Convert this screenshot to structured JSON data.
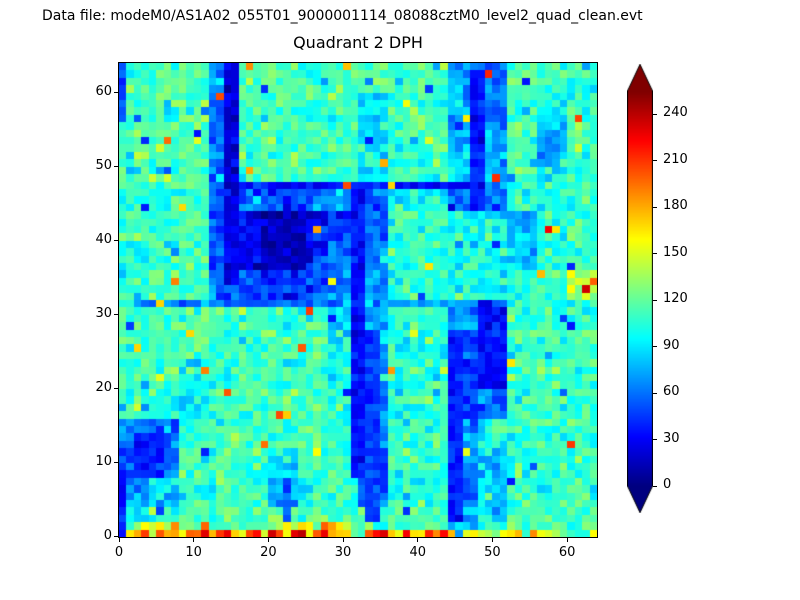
{
  "page": {
    "background": "#ffffff",
    "frame_color": "#000000"
  },
  "header": {
    "data_file_label": "Data file: modeM0/AS1A02_055T01_9000001114_08088cztM0_level2_quad_clean.evt"
  },
  "chart_data": {
    "type": "heatmap",
    "title": "Quadrant 2 DPH",
    "xlabel": "",
    "ylabel": "",
    "xlim": [
      0,
      64
    ],
    "ylim": [
      0,
      64
    ],
    "x_ticks": [
      0,
      10,
      20,
      30,
      40,
      50,
      60
    ],
    "y_ticks": [
      0,
      10,
      20,
      30,
      40,
      50,
      60
    ],
    "grid_size": 64,
    "colormap": "jet",
    "vmin": 0,
    "vmax": 255,
    "colorbar": {
      "ticks": [
        0,
        30,
        60,
        90,
        120,
        150,
        180,
        210,
        240
      ],
      "extend": "both"
    },
    "field": {
      "seed": 20240817,
      "noise_sd": 12,
      "dark_speckle_prob": 0.012,
      "hot_speckle_prob": 0.005,
      "coarse_origin": "top-left",
      "coarse_cell": 4,
      "coarse_grid": [
        [
          112,
          116,
          120,
          70,
          114,
          118,
          112,
          116,
          118,
          112,
          116,
          72,
          58,
          114,
          110,
          112
        ],
        [
          110,
          114,
          118,
          62,
          114,
          116,
          110,
          112,
          82,
          114,
          112,
          76,
          64,
          110,
          96,
          112
        ],
        [
          114,
          118,
          114,
          60,
          112,
          116,
          114,
          110,
          86,
          112,
          114,
          82,
          70,
          112,
          86,
          110
        ],
        [
          112,
          112,
          116,
          64,
          110,
          114,
          112,
          108,
          92,
          110,
          112,
          86,
          76,
          108,
          92,
          108
        ],
        [
          110,
          108,
          112,
          60,
          56,
          50,
          56,
          72,
          62,
          96,
          92,
          62,
          55,
          104,
          100,
          106
        ],
        [
          108,
          112,
          110,
          55,
          30,
          24,
          34,
          52,
          60,
          110,
          112,
          100,
          96,
          76,
          110,
          112
        ],
        [
          110,
          108,
          112,
          52,
          28,
          22,
          30,
          55,
          66,
          108,
          110,
          106,
          100,
          82,
          108,
          110
        ],
        [
          106,
          110,
          108,
          62,
          46,
          40,
          50,
          62,
          72,
          106,
          108,
          100,
          96,
          104,
          110,
          140
        ],
        [
          108,
          112,
          114,
          110,
          112,
          108,
          110,
          86,
          76,
          108,
          110,
          72,
          40,
          106,
          108,
          110
        ],
        [
          110,
          114,
          112,
          108,
          110,
          112,
          108,
          90,
          80,
          106,
          108,
          56,
          32,
          108,
          110,
          112
        ],
        [
          108,
          112,
          92,
          106,
          110,
          108,
          112,
          96,
          72,
          108,
          106,
          48,
          36,
          106,
          112,
          108
        ],
        [
          110,
          108,
          96,
          108,
          110,
          118,
          110,
          100,
          76,
          106,
          108,
          52,
          62,
          108,
          110,
          112
        ],
        [
          66,
          58,
          110,
          112,
          108,
          112,
          110,
          108,
          62,
          110,
          108,
          72,
          104,
          110,
          108,
          112
        ],
        [
          52,
          52,
          108,
          110,
          110,
          88,
          110,
          108,
          56,
          108,
          106,
          56,
          82,
          108,
          110,
          108
        ],
        [
          72,
          92,
          110,
          108,
          112,
          82,
          108,
          110,
          58,
          106,
          108,
          52,
          86,
          110,
          108,
          110
        ],
        [
          86,
          112,
          116,
          112,
          114,
          118,
          114,
          112,
          112,
          114,
          112,
          74,
          112,
          116,
          112,
          114
        ]
      ],
      "dark_rects": [
        {
          "x": 14,
          "y": 34,
          "w": 2,
          "h": 30,
          "v": 24
        },
        {
          "x": 31,
          "y": 8,
          "w": 2,
          "h": 40,
          "v": 34
        },
        {
          "x": 33,
          "y": 2,
          "w": 2,
          "h": 26,
          "v": 46
        },
        {
          "x": 44,
          "y": 2,
          "w": 2,
          "h": 26,
          "v": 40
        },
        {
          "x": 16,
          "y": 47,
          "w": 31,
          "h": 1,
          "v": 34
        },
        {
          "x": 2,
          "y": 31,
          "w": 28,
          "h": 1,
          "v": 58
        },
        {
          "x": 36,
          "y": 31,
          "w": 10,
          "h": 1,
          "v": 72
        },
        {
          "x": 47,
          "y": 44,
          "w": 2,
          "h": 19,
          "v": 34
        },
        {
          "x": 48,
          "y": 20,
          "w": 4,
          "h": 11,
          "v": 36
        },
        {
          "x": 2,
          "y": 8,
          "w": 4,
          "h": 6,
          "v": 38
        },
        {
          "x": 0,
          "y": 0,
          "w": 1,
          "h": 8,
          "v": 32
        },
        {
          "x": 0,
          "y": 56,
          "w": 1,
          "h": 8,
          "v": 52
        },
        {
          "x": 22,
          "y": 2,
          "w": 1,
          "h": 6,
          "v": 48
        },
        {
          "x": 56,
          "y": 50,
          "w": 3,
          "h": 5,
          "v": 72
        },
        {
          "x": 19,
          "y": 36,
          "w": 6,
          "h": 8,
          "v": 16
        },
        {
          "x": 50,
          "y": 2,
          "w": 2,
          "h": 8,
          "v": 78
        }
      ],
      "hot_rows": [
        {
          "y": 0,
          "x0": 1,
          "x1": 30,
          "v": 185
        },
        {
          "y": 0,
          "x0": 33,
          "x1": 44,
          "v": 190
        },
        {
          "y": 0,
          "x0": 46,
          "x1": 60,
          "v": 145
        },
        {
          "y": 1,
          "x0": 2,
          "x1": 8,
          "v": 150
        },
        {
          "y": 1,
          "x0": 20,
          "x1": 30,
          "v": 160
        }
      ],
      "hot_cells": [
        {
          "x": 30,
          "y": 47,
          "v": 205
        },
        {
          "x": 36,
          "y": 47,
          "v": 170
        },
        {
          "x": 57,
          "y": 41,
          "v": 225
        },
        {
          "x": 58,
          "y": 41,
          "v": 165
        },
        {
          "x": 62,
          "y": 33,
          "v": 235
        },
        {
          "x": 63,
          "y": 34,
          "v": 200
        },
        {
          "x": 21,
          "y": 16,
          "v": 205
        },
        {
          "x": 22,
          "y": 16,
          "v": 172
        },
        {
          "x": 17,
          "y": 63,
          "v": 188
        },
        {
          "x": 30,
          "y": 63,
          "v": 175
        },
        {
          "x": 49,
          "y": 62,
          "v": 215
        },
        {
          "x": 26,
          "y": 41,
          "v": 182
        },
        {
          "x": 8,
          "y": 44,
          "v": 168
        },
        {
          "x": 41,
          "y": 36,
          "v": 165
        },
        {
          "x": 20,
          "y": 0,
          "v": 235
        },
        {
          "x": 24,
          "y": 0,
          "v": 240
        },
        {
          "x": 27,
          "y": 0,
          "v": 228
        },
        {
          "x": 35,
          "y": 0,
          "v": 232
        },
        {
          "x": 38,
          "y": 0,
          "v": 225
        },
        {
          "x": 13,
          "y": 0,
          "v": 210
        },
        {
          "x": 63,
          "y": 0,
          "v": 160
        },
        {
          "x": 46,
          "y": 0,
          "v": 152
        },
        {
          "x": 5,
          "y": 31,
          "v": 170
        },
        {
          "x": 52,
          "y": 23,
          "v": 165
        }
      ]
    }
  }
}
